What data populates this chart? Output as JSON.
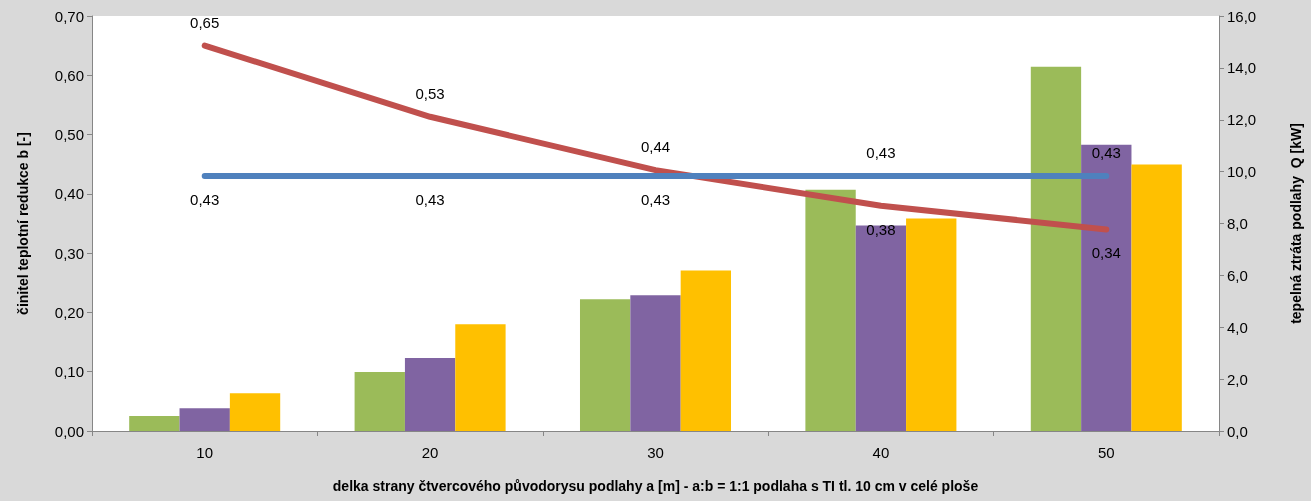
{
  "chart_data": {
    "type": "bar",
    "xlabel": "delka strany čtvercového původorysu podlahy a [m] - a:b = 1:1 podlaha s TI tl. 10 cm v celé ploše",
    "ylabel": "činitel teplotní redukce b [-]",
    "y2label": "tepelná ztráta podlahy  Q [kW]",
    "categories": [
      "10",
      "20",
      "30",
      "40",
      "50"
    ],
    "series": [
      {
        "axis": "y2",
        "color": "#9bbb59",
        "values": [
          0.58,
          2.27,
          5.08,
          9.3,
          14.04
        ]
      },
      {
        "axis": "y2",
        "color": "#8064a2",
        "values": [
          0.88,
          2.81,
          5.23,
          7.92,
          11.04
        ]
      },
      {
        "axis": "y2",
        "color": "#ffc000",
        "values": [
          1.46,
          4.12,
          6.19,
          8.19,
          10.27
        ]
      },
      {
        "type": "line",
        "axis": "y",
        "color": "#c0504d",
        "values": [
          0.65,
          0.53,
          0.44,
          0.38,
          0.34
        ],
        "value_labels": [
          "0,65",
          "0,53",
          "0,44",
          "0,38",
          "0,34"
        ]
      },
      {
        "type": "line",
        "axis": "y",
        "color": "#4f81bd",
        "values": [
          0.43,
          0.43,
          0.43,
          0.43,
          0.43
        ],
        "value_labels": [
          "0,43",
          "0,43",
          "0,43",
          "0,43",
          "0,43"
        ]
      }
    ],
    "ylim": [
      0,
      0.7
    ],
    "yticks": [
      {
        "value": 0,
        "label": "0,00"
      },
      {
        "value": 0.1,
        "label": "0,10"
      },
      {
        "value": 0.2,
        "label": "0,20"
      },
      {
        "value": 0.3,
        "label": "0,30"
      },
      {
        "value": 0.4,
        "label": "0,40"
      },
      {
        "value": 0.5,
        "label": "0,50"
      },
      {
        "value": 0.6,
        "label": "0,60"
      },
      {
        "value": 0.7,
        "label": "0,70"
      }
    ],
    "y2lim": [
      0,
      16
    ],
    "y2ticks": [
      {
        "value": 0,
        "label": "0,0"
      },
      {
        "value": 2,
        "label": "2,0"
      },
      {
        "value": 4,
        "label": "4,0"
      },
      {
        "value": 6,
        "label": "6,0"
      },
      {
        "value": 8,
        "label": "8,0"
      },
      {
        "value": 10,
        "label": "10,0"
      },
      {
        "value": 12,
        "label": "12,0"
      },
      {
        "value": 14,
        "label": "14,0"
      },
      {
        "value": 16,
        "label": "16,0"
      }
    ],
    "grid": false,
    "marker": "none",
    "line_style": "solid"
  }
}
